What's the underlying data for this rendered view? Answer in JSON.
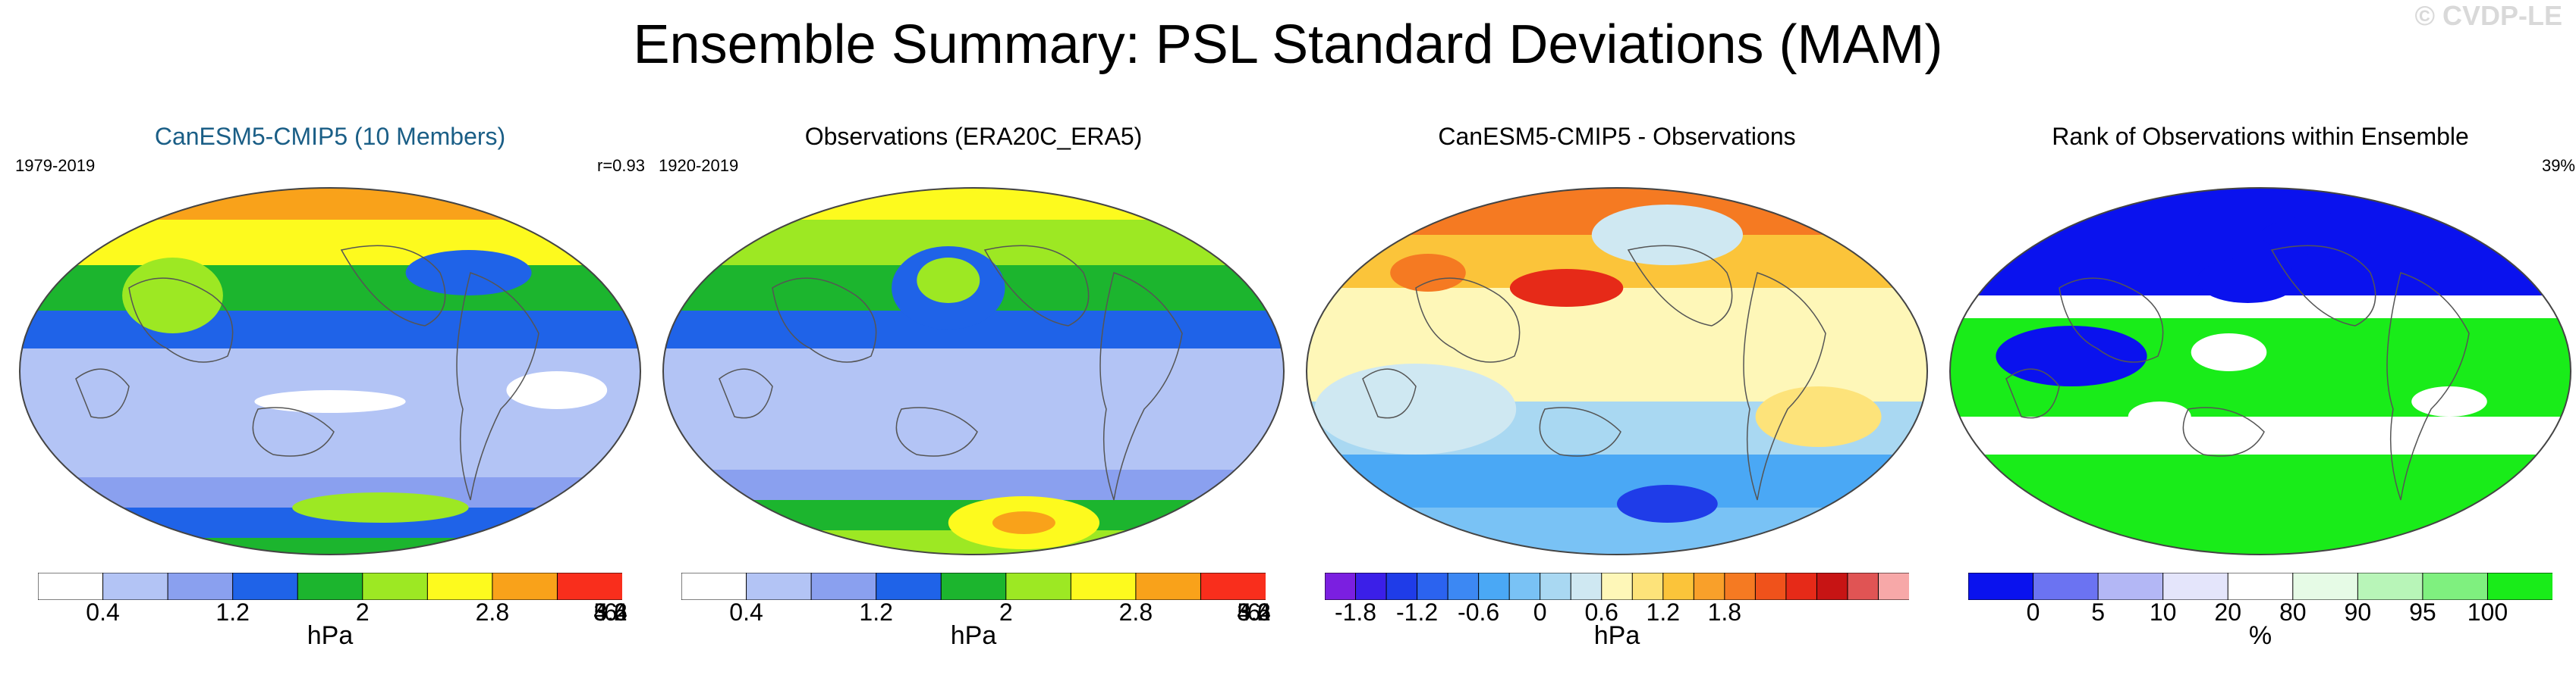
{
  "title": "Ensemble Summary: PSL Standard Deviations (MAM)",
  "watermark": "© CVDP-LE",
  "chart_data": [
    {
      "type": "heatmap",
      "title": "CanESM5-CMIP5 (10 Members)",
      "title_color": "#1a5e86",
      "period": "1979-2019",
      "stat": "r=0.93",
      "units": "hPa",
      "projection": "Robinson, Pacific-centered",
      "levels": [
        0.4,
        0.8,
        1.2,
        1.6,
        2,
        2.4,
        2.8,
        3.2,
        3.6,
        4,
        4.4,
        4.8,
        5.2,
        5.6,
        6,
        6.4
      ],
      "tick_labels": [
        "0.4",
        "1.2",
        "2",
        "2.8",
        "3.6",
        "4.4",
        "5.2",
        "6"
      ],
      "colors": [
        "#ffffff",
        "#b3c4f5",
        "#8aa0ef",
        "#1f63e8",
        "#1cb52e",
        "#9de823",
        "#fdfa1e",
        "#f9a21a",
        "#f92e1c"
      ]
    },
    {
      "type": "heatmap",
      "title": "Observations (ERA20C_ERA5)",
      "title_color": "#000000",
      "period": "1920-2019",
      "stat": "",
      "units": "hPa",
      "projection": "Robinson, Pacific-centered",
      "levels": [
        0.4,
        0.8,
        1.2,
        1.6,
        2,
        2.4,
        2.8,
        3.2,
        3.6,
        4,
        4.4,
        4.8,
        5.2,
        5.6,
        6,
        6.4
      ],
      "tick_labels": [
        "0.4",
        "1.2",
        "2",
        "2.8",
        "3.6",
        "4.4",
        "5.2",
        "6"
      ],
      "colors": [
        "#ffffff",
        "#b3c4f5",
        "#8aa0ef",
        "#1f63e8",
        "#1cb52e",
        "#9de823",
        "#fdfa1e",
        "#f9a21a",
        "#f92e1c"
      ]
    },
    {
      "type": "heatmap",
      "title": "CanESM5-CMIP5 - Observations",
      "title_color": "#000000",
      "period": "",
      "stat": "",
      "units": "hPa",
      "projection": "Robinson, Pacific-centered",
      "levels": [
        -2.1,
        -1.8,
        -1.5,
        -1.2,
        -0.9,
        -0.6,
        -0.3,
        0,
        0.3,
        0.6,
        0.9,
        1.2,
        1.5,
        1.8,
        2.1
      ],
      "tick_labels": [
        "-1.8",
        "-1.2",
        "-0.6",
        "0",
        "0.6",
        "1.2",
        "1.8"
      ],
      "colors": [
        "#7b1fe0",
        "#3b1fe8",
        "#1f3ce8",
        "#2b63ef",
        "#3c88f3",
        "#4aa8f5",
        "#79c2f5",
        "#a9d8f2",
        "#cfe8f2",
        "#fef7b8",
        "#fde37a",
        "#fbc43a",
        "#f9a02a",
        "#f57a22",
        "#f0521b",
        "#e62a18",
        "#c71414",
        "#e05454",
        "#f7a8a8"
      ]
    },
    {
      "type": "heatmap",
      "title": "Rank of Observations within Ensemble",
      "title_color": "#000000",
      "period": "",
      "stat": "39%",
      "units": "%",
      "projection": "Robinson, Pacific-centered",
      "levels": [
        0,
        5,
        10,
        20,
        80,
        90,
        95,
        100
      ],
      "tick_labels": [
        "0",
        "5",
        "10",
        "20",
        "80",
        "90",
        "95",
        "100"
      ],
      "colors": [
        "#0a12ee",
        "#6b73f2",
        "#b3b7f5",
        "#e4e5fb",
        "#ffffff",
        "#e6fbe6",
        "#b8f5b8",
        "#7ff07f",
        "#19ec19"
      ]
    }
  ]
}
